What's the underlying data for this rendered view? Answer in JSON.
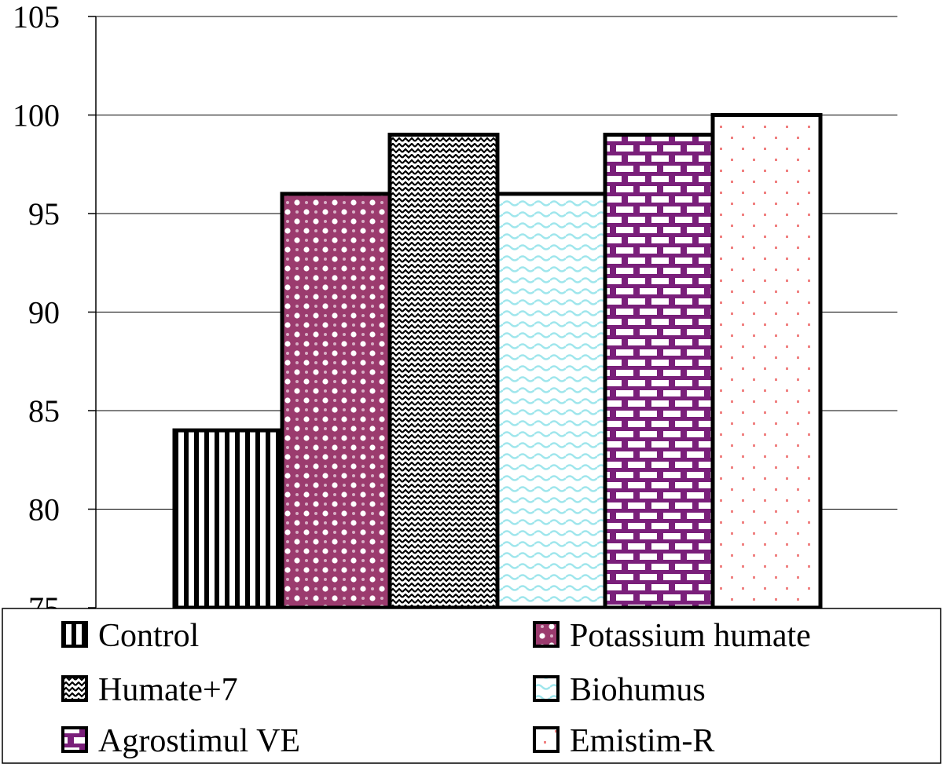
{
  "chart_data": {
    "type": "bar",
    "title": "",
    "xlabel": "",
    "ylabel": "",
    "ylim": [
      75,
      105
    ],
    "yticks": [
      75,
      80,
      85,
      90,
      95,
      100,
      105
    ],
    "grid": "horizontal",
    "legend_position": "bottom",
    "series": [
      {
        "name": "Control",
        "value": 84,
        "pattern": "vertical-stripes",
        "color": "#000000"
      },
      {
        "name": "Potassium humate",
        "value": 96,
        "pattern": "checker-dots",
        "color": "#9b3b6e"
      },
      {
        "name": "Humate+7",
        "value": 99,
        "pattern": "zigzag",
        "color": "#000000"
      },
      {
        "name": "Biohumus",
        "value": 96,
        "pattern": "wave",
        "color": "#9fe6ec"
      },
      {
        "name": "Agrostimul VE",
        "value": 99,
        "pattern": "bricks",
        "color": "#7a1f7a"
      },
      {
        "name": "Emistim-R",
        "value": 100,
        "pattern": "sparse-dots",
        "color": "#f08080"
      }
    ]
  }
}
